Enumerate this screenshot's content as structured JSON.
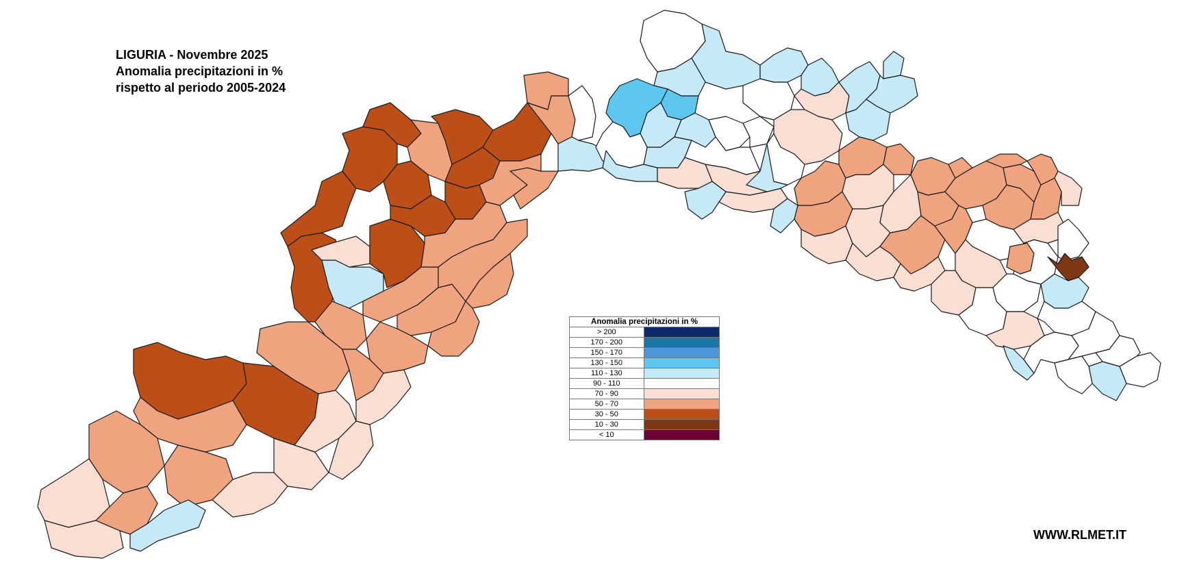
{
  "title": {
    "line1": "LIGURIA - Novembre 2025",
    "line2": "Anomalia precipitazioni in %",
    "line3": "rispetto al periodo 2005-2024"
  },
  "legend": {
    "header": "Anomalia precipitazioni in %",
    "classes": [
      {
        "label": "> 200",
        "color": "#0d2a6b"
      },
      {
        "label": "170 - 200",
        "color": "#1b77a6"
      },
      {
        "label": "150 - 170",
        "color": "#4b97da"
      },
      {
        "label": "130 - 150",
        "color": "#5ec7f0"
      },
      {
        "label": "110 - 130",
        "color": "#c6e9f7"
      },
      {
        "label": "90 - 110",
        "color": "#ffffff"
      },
      {
        "label": "70 - 90",
        "color": "#f9dfd3"
      },
      {
        "label": "50 - 70",
        "color": "#efa37f"
      },
      {
        "label": "30 - 50",
        "color": "#bc4f17"
      },
      {
        "label": "10 - 30",
        "color": "#7f3614"
      },
      {
        "label": "< 10",
        "color": "#6a0033"
      }
    ]
  },
  "watermark": "WWW.RLMET.IT"
}
